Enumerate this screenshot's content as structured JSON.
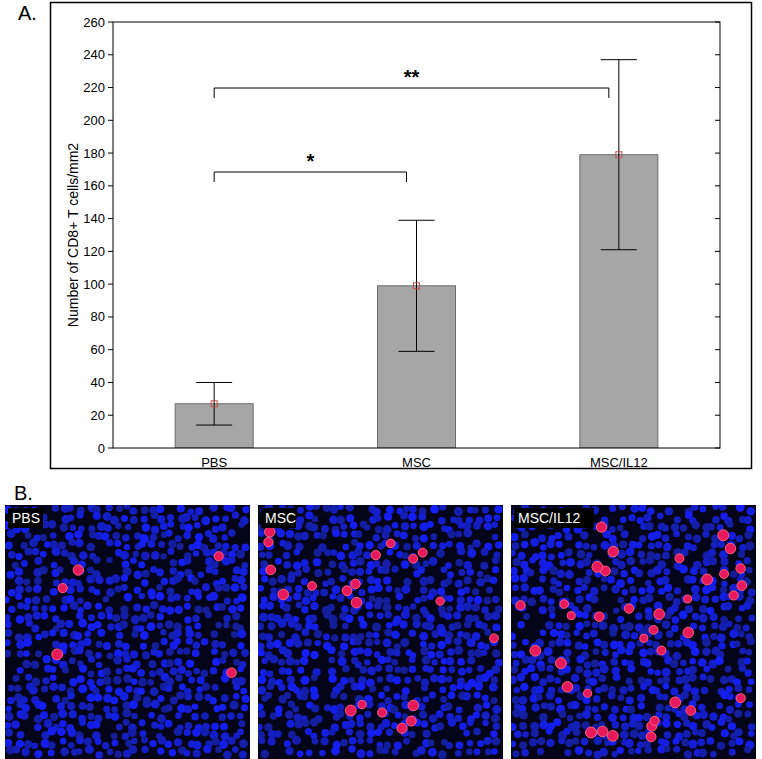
{
  "chart_data": {
    "type": "bar",
    "panel_label": "A.",
    "y_label": "Number of CD8+ T cells/mm2",
    "categories": [
      "PBS",
      "MSC",
      "MSC/IL12"
    ],
    "values": [
      27,
      99,
      179
    ],
    "errors": [
      13,
      40,
      58
    ],
    "color": "#a6a6a6",
    "ylim": [
      0,
      260
    ],
    "yticks": [
      0,
      20,
      40,
      60,
      80,
      100,
      120,
      140,
      160,
      180,
      200,
      220,
      240,
      260
    ],
    "grid": false,
    "annotations": [
      {
        "text": "*",
        "from": 0,
        "to": 1
      },
      {
        "text": "**",
        "from": 0,
        "to": 2
      }
    ]
  },
  "images": {
    "panel_label": "B.",
    "labels": [
      "PBS",
      "MSC",
      "MSC/IL12"
    ]
  }
}
